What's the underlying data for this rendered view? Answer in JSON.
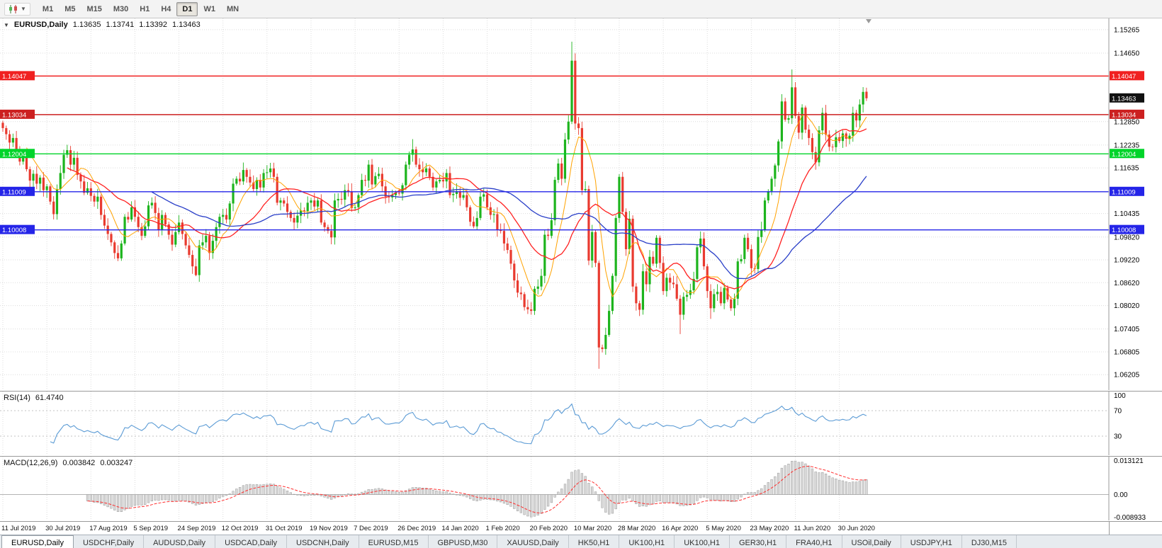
{
  "toolbar": {
    "timeframes": [
      "M1",
      "M5",
      "M15",
      "M30",
      "H1",
      "H4",
      "D1",
      "W1",
      "MN"
    ],
    "selected_timeframe": "D1"
  },
  "chart": {
    "title": "EURUSD,Daily",
    "ohlc": {
      "open": "1.13635",
      "high": "1.13741",
      "low": "1.13392",
      "close": "1.13463"
    },
    "current_price": "1.13463",
    "current_price_badge_color": "#111111",
    "levels": [
      {
        "value": "1.14047",
        "color": "#f02020",
        "type": "resistance"
      },
      {
        "value": "1.13034",
        "color": "#cc2020",
        "type": "resistance"
      },
      {
        "value": "1.12004",
        "color": "#00d42a",
        "type": "support"
      },
      {
        "value": "1.11009",
        "color": "#2424e8",
        "type": "support"
      },
      {
        "value": "1.10008",
        "color": "#2424e8",
        "type": "support"
      }
    ],
    "price_ticks": [
      "1.15265",
      "1.14650",
      "1.12850",
      "1.12235",
      "1.11635",
      "1.10435",
      "1.09820",
      "1.09220",
      "1.08620",
      "1.08020",
      "1.07405",
      "1.06805",
      "1.06205"
    ]
  },
  "rsi": {
    "label": "RSI(14)",
    "value": "61.4740",
    "axis_labels": [
      "100",
      "70",
      "30"
    ],
    "levels": [
      70,
      30
    ]
  },
  "macd": {
    "label": "MACD(12,26,9)",
    "main_value": "0.003842",
    "signal_value": "0.003247",
    "axis_labels": {
      "max": "0.013121",
      "zero": "0.00",
      "min": "-0.008933"
    }
  },
  "date_axis": [
    "11 Jul 2019",
    "30 Jul 2019",
    "17 Aug 2019",
    "5 Sep 2019",
    "24 Sep 2019",
    "12 Oct 2019",
    "31 Oct 2019",
    "19 Nov 2019",
    "7 Dec 2019",
    "26 Dec 2019",
    "14 Jan 2020",
    "1 Feb 2020",
    "20 Feb 2020",
    "10 Mar 2020",
    "28 Mar 2020",
    "16 Apr 2020",
    "5 May 2020",
    "23 May 2020",
    "11 Jun 2020",
    "30 Jun 2020"
  ],
  "tabs": [
    "EURUSD,Daily",
    "USDCHF,Daily",
    "AUDUSD,Daily",
    "USDCAD,Daily",
    "USDCNH,Daily",
    "EURUSD,M15",
    "GBPUSD,M30",
    "XAUUSD,Daily",
    "HK50,H1",
    "UK100,H1",
    "UK100,H1",
    "GER30,H1",
    "FRA40,H1",
    "USOil,Daily",
    "USDJPY,H1",
    "DJ30,M15"
  ],
  "active_tab_index": 0,
  "chart_data": {
    "type": "candlestick",
    "symbol": "EURUSD",
    "period": "Daily",
    "x_tick_interval": 13,
    "price_range": {
      "min": 1.058,
      "max": 1.1556
    },
    "colors": {
      "bull": "#1db41d",
      "bear": "#e93a2f",
      "ma_fast": "#ffa200",
      "ma_mid": "#ff2020",
      "ma_slow": "#2a3fc8",
      "rsi_line": "#5b9bd5",
      "macd_hist_fill": "#d9d9d9",
      "macd_hist_stroke": "#9a9a9a",
      "macd_signal": "#ff3030"
    },
    "closes": [
      1.1268,
      1.1252,
      1.123,
      1.1242,
      1.1205,
      1.118,
      1.1195,
      1.116,
      1.113,
      1.1148,
      1.1122,
      1.1138,
      1.1105,
      1.1115,
      1.1075,
      1.1042,
      1.1108,
      1.115,
      1.1198,
      1.121,
      1.1172,
      1.119,
      1.1145,
      1.1128,
      1.1098,
      1.111,
      1.109,
      1.1075,
      1.1088,
      1.104,
      1.1012,
      1.099,
      1.0968,
      1.094,
      1.0926,
      1.0965,
      1.1035,
      1.1028,
      1.106,
      1.1035,
      1.1008,
      1.0985,
      1.101,
      1.1065,
      1.1072,
      1.1045,
      1.1002,
      1.104,
      1.1015,
      1.0988,
      1.0962,
      1.0995,
      1.102,
      1.099,
      1.096,
      1.0935,
      1.0905,
      1.0882,
      1.096,
      1.0968,
      1.0985,
      1.094,
      1.0972,
      1.1008,
      1.1035,
      1.104,
      1.1028,
      1.107,
      1.1122,
      1.1135,
      1.1128,
      1.1158,
      1.114,
      1.1125,
      1.1108,
      1.1132,
      1.1112,
      1.115,
      1.1152,
      1.1162,
      1.114,
      1.1072,
      1.1078,
      1.107,
      1.1048,
      1.1032,
      1.102,
      1.1038,
      1.1052,
      1.105,
      1.1072,
      1.1078,
      1.1062,
      1.1078,
      1.102,
      1.1008,
      1.0998,
      1.0981,
      1.1078,
      1.1082,
      1.108,
      1.1105,
      1.1102,
      1.1058,
      1.106,
      1.1092,
      1.1132,
      1.113,
      1.1172,
      1.112,
      1.1142,
      1.1148,
      1.1115,
      1.1088,
      1.1086,
      1.1092,
      1.1098,
      1.1096,
      1.1118,
      1.1172,
      1.1198,
      1.1212,
      1.1172,
      1.116,
      1.1152,
      1.1162,
      1.114,
      1.1112,
      1.1128,
      1.1132,
      1.1128,
      1.115,
      1.1092,
      1.1095,
      1.1102,
      1.1085,
      1.1092,
      1.106,
      1.1022,
      1.101,
      1.1032,
      1.1088,
      1.1094,
      1.106,
      1.104,
      1.1042,
      1.1002,
      1.0998,
      1.0965,
      1.0948,
      1.0912,
      1.0868,
      1.0836,
      1.0832,
      1.0798,
      1.0792,
      1.0788,
      1.0846,
      1.0852,
      1.088,
      1.0988,
      1.0985,
      1.1026,
      1.1132,
      1.1175,
      1.1135,
      1.1238,
      1.1285,
      1.1445,
      1.128,
      1.1268,
      1.1105,
      1.1108,
      1.092,
      1.0995,
      1.0914,
      1.0692,
      1.0688,
      1.0725,
      1.0788,
      1.088,
      1.1032,
      1.114,
      1.1048,
      1.095,
      1.103,
      1.0852,
      1.0808,
      1.0791,
      1.0892,
      1.0858,
      1.093,
      1.0912,
      1.098,
      1.0914,
      1.084,
      1.0875,
      1.0862,
      1.0858,
      1.082,
      1.0778,
      1.0825,
      1.083,
      1.0842,
      1.0872,
      1.0955,
      1.0978,
      1.0905,
      1.084,
      1.0795,
      1.0832,
      1.0838,
      1.0808,
      1.0848,
      1.0818,
      1.0795,
      1.082,
      1.0918,
      1.0924,
      1.098,
      1.095,
      1.09,
      1.0898,
      1.0982,
      1.1002,
      1.1078,
      1.1102,
      1.1135,
      1.117,
      1.1233,
      1.1338,
      1.129,
      1.1294,
      1.1375,
      1.13,
      1.1256,
      1.1322,
      1.1264,
      1.1242,
      1.1205,
      1.1178,
      1.1262,
      1.1308,
      1.1251,
      1.1219,
      1.1218,
      1.1244,
      1.1234,
      1.1254,
      1.124,
      1.1248,
      1.1308,
      1.1288,
      1.133,
      1.1363,
      1.13463
    ],
    "high_overrides": {
      "121": 1.1239,
      "168": 1.1495,
      "233": 1.1422
    },
    "low_overrides": {
      "57": 1.0879,
      "156": 1.0778,
      "176": 1.0636,
      "200": 1.0727,
      "209": 1.0767
    }
  }
}
